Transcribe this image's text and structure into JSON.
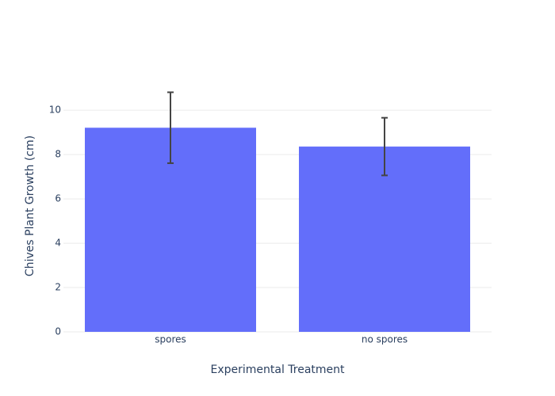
{
  "chart_data": {
    "type": "bar",
    "x_label": "Experimental Treatment",
    "y_label": "Chives Plant Growth (cm)",
    "categories": [
      "spores",
      "no spores"
    ],
    "values": [
      9.21,
      8.36
    ],
    "errors": [
      1.6,
      1.3
    ],
    "color": "#636efa",
    "error_color": "#444444",
    "ylim": [
      0,
      11.4
    ],
    "yticks": [
      0,
      2,
      4,
      6,
      8,
      10
    ],
    "grid": true
  }
}
